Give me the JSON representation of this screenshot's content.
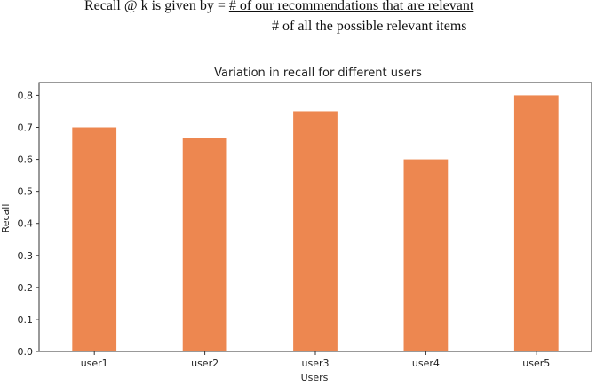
{
  "header": {
    "formula_prefix": "Recall @ k is given by = ",
    "formula_numerator": "# of our recommendations that are relevant",
    "formula_denominator": "# of all the possible relevant items"
  },
  "chart_data": {
    "type": "bar",
    "title": "Variation in recall for different users",
    "xlabel": "Users",
    "ylabel": "Recall",
    "categories": [
      "user1",
      "user2",
      "user3",
      "user4",
      "user5"
    ],
    "values": [
      0.7,
      0.667,
      0.75,
      0.6,
      0.8
    ],
    "ylim": [
      0,
      0.84
    ],
    "yticks": [
      "0.0",
      "0.1",
      "0.2",
      "0.3",
      "0.4",
      "0.5",
      "0.6",
      "0.7",
      "0.8"
    ],
    "grid": false,
    "colors": {
      "bar": "#ed8750",
      "axis": "#333333",
      "text": "#222222"
    }
  }
}
